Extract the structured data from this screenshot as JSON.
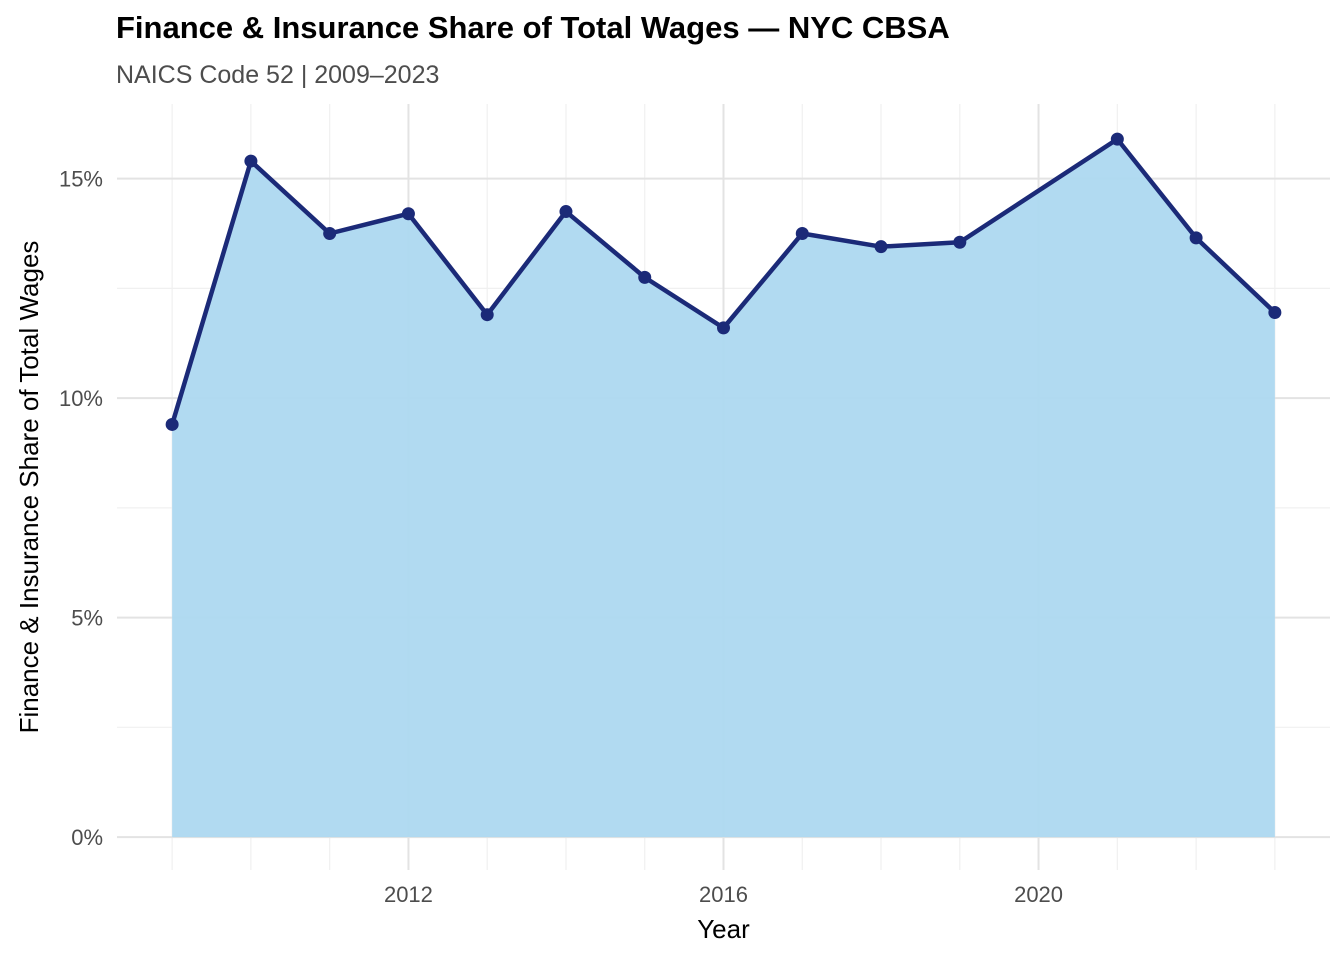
{
  "title": "Finance & Insurance Share of Total Wages — NYC CBSA",
  "subtitle": "NAICS Code 52 | 2009–2023",
  "colors": {
    "area_fill": "#add8f0",
    "line": "#1b2a78",
    "grid_major": "#e3e3e3",
    "grid_minor": "#f0f0f0",
    "tick_text": "#4d4d4d"
  },
  "chart_data": {
    "type": "area",
    "title": "Finance & Insurance Share of Total Wages — NYC CBSA",
    "subtitle": "NAICS Code 52 | 2009–2023",
    "xlabel": "Year",
    "ylabel": "Finance & Insurance Share of Total Wages",
    "x": [
      2009,
      2010,
      2011,
      2012,
      2013,
      2014,
      2015,
      2016,
      2017,
      2018,
      2019,
      2020,
      2021,
      2022,
      2023
    ],
    "values": [
      9.4,
      15.4,
      13.75,
      14.2,
      11.9,
      14.25,
      12.75,
      11.6,
      13.75,
      13.45,
      13.55,
      null,
      15.9,
      13.65,
      11.95
    ],
    "xlim": [
      2008.3,
      2023.7
    ],
    "ylim": [
      -0.75,
      16.7
    ],
    "x_ticks": [
      2012,
      2016,
      2020
    ],
    "x_tick_labels": [
      "2012",
      "2016",
      "2020"
    ],
    "y_ticks": [
      0,
      5,
      10,
      15
    ],
    "y_tick_labels": [
      "0%",
      "5%",
      "10%",
      "15%"
    ],
    "grid": true,
    "legend": "none"
  }
}
